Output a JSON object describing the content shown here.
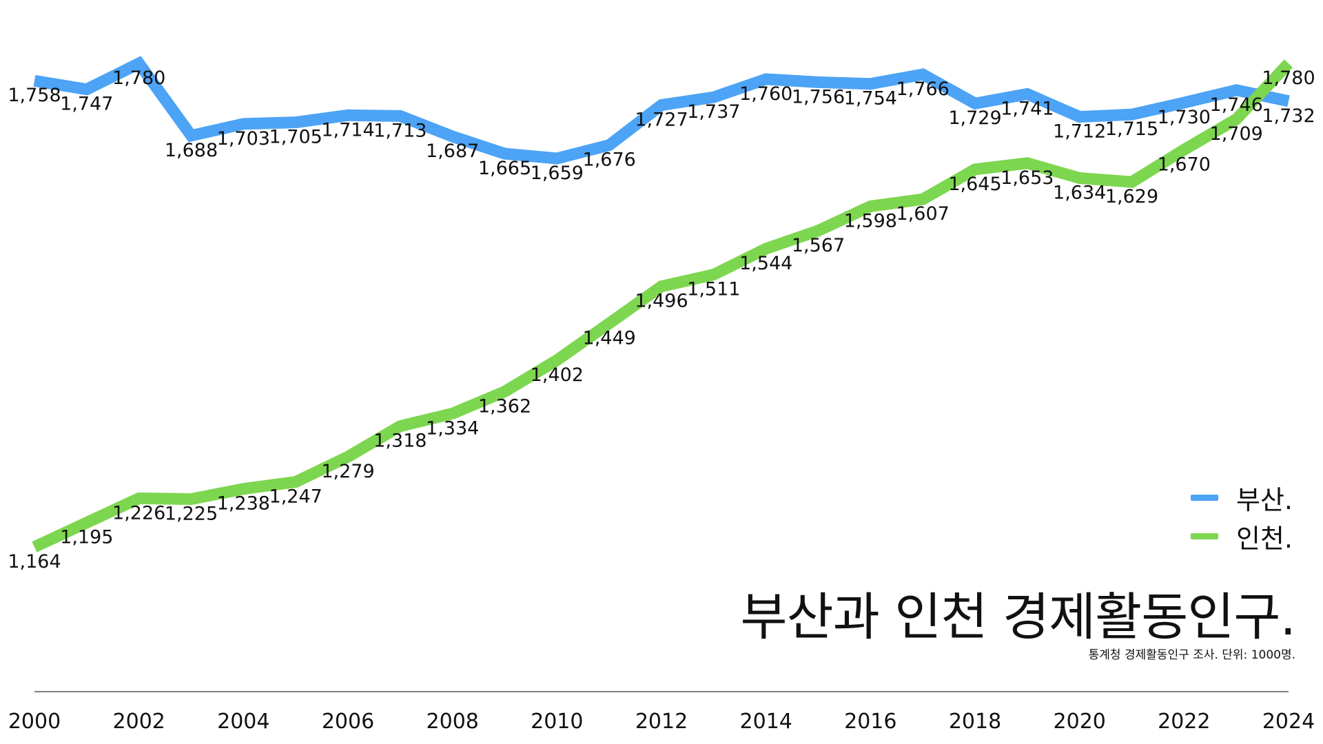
{
  "chart_data": {
    "type": "line",
    "title": "부산과 인천 경제활동인구.",
    "subtitle": "통계청 경제활동인구 조사. 단위: 1000명.",
    "x": [
      2000,
      2001,
      2002,
      2003,
      2004,
      2005,
      2006,
      2007,
      2008,
      2009,
      2010,
      2011,
      2012,
      2013,
      2014,
      2015,
      2016,
      2017,
      2018,
      2019,
      2020,
      2021,
      2022,
      2023,
      2024
    ],
    "x_tick_labels": [
      "2000",
      "2002",
      "2004",
      "2006",
      "2008",
      "2010",
      "2012",
      "2014",
      "2016",
      "2018",
      "2020",
      "2022",
      "2024"
    ],
    "series": [
      {
        "name": "부산.",
        "color": "#4da3f5",
        "values": [
          1758,
          1747,
          1780,
          1688,
          1703,
          1705,
          1714,
          1713,
          1687,
          1665,
          1659,
          1676,
          1727,
          1737,
          1760,
          1756,
          1754,
          1766,
          1729,
          1741,
          1712,
          1715,
          1730,
          1746,
          1732
        ]
      },
      {
        "name": "인천.",
        "color": "#7dd64f",
        "values": [
          1164,
          1195,
          1226,
          1225,
          1238,
          1247,
          1279,
          1318,
          1334,
          1362,
          1402,
          1449,
          1496,
          1511,
          1544,
          1567,
          1598,
          1607,
          1645,
          1653,
          1634,
          1629,
          1670,
          1709,
          1780
        ]
      }
    ],
    "ylim": [
      1150,
      1795
    ],
    "grid": false,
    "legend_position": "bottom-right"
  }
}
